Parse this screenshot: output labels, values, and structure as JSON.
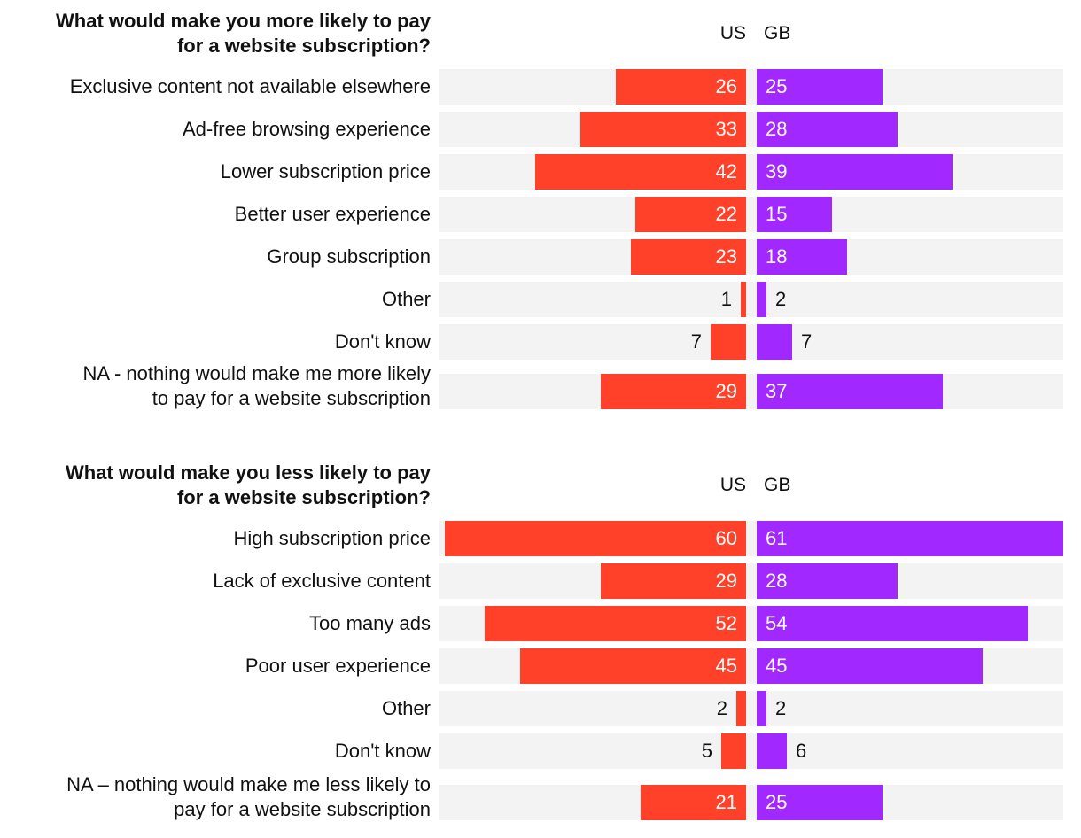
{
  "chart_data": [
    {
      "type": "bar",
      "orientation": "horizontal-diverging",
      "title": "What would make you more likely to pay for a website subscription?",
      "title_lines": [
        "What would make you more likely to pay",
        "for a website subscription?"
      ],
      "series_labels": [
        "US",
        "GB"
      ],
      "colors": {
        "US": "#ff4129",
        "GB": "#a128ff",
        "track": "#f3f3f3"
      },
      "xlim": [
        0,
        61
      ],
      "rows": [
        {
          "label_lines": [
            "Exclusive content not available elsewhere"
          ],
          "US": 26,
          "GB": 25
        },
        {
          "label_lines": [
            "Ad-free browsing experience"
          ],
          "US": 33,
          "GB": 28
        },
        {
          "label_lines": [
            "Lower subscription price"
          ],
          "US": 42,
          "GB": 39
        },
        {
          "label_lines": [
            "Better user experience"
          ],
          "US": 22,
          "GB": 15
        },
        {
          "label_lines": [
            "Group subscription"
          ],
          "US": 23,
          "GB": 18
        },
        {
          "label_lines": [
            "Other"
          ],
          "US": 1,
          "GB": 2
        },
        {
          "label_lines": [
            "Don't know"
          ],
          "US": 7,
          "GB": 7
        },
        {
          "label_lines": [
            "NA - nothing would make me more likely",
            "to pay for a website subscription"
          ],
          "US": 29,
          "GB": 37
        }
      ]
    },
    {
      "type": "bar",
      "orientation": "horizontal-diverging",
      "title": "What would make you less likely to pay for a website subscription?",
      "title_lines": [
        "What would make you less likely to pay",
        "for a website subscription?"
      ],
      "series_labels": [
        "US",
        "GB"
      ],
      "colors": {
        "US": "#ff4129",
        "GB": "#a128ff",
        "track": "#f3f3f3"
      },
      "xlim": [
        0,
        61
      ],
      "rows": [
        {
          "label_lines": [
            "High subscription price"
          ],
          "US": 60,
          "GB": 61
        },
        {
          "label_lines": [
            "Lack of exclusive content"
          ],
          "US": 29,
          "GB": 28
        },
        {
          "label_lines": [
            "Too many ads"
          ],
          "US": 52,
          "GB": 54
        },
        {
          "label_lines": [
            "Poor user experience"
          ],
          "US": 45,
          "GB": 45
        },
        {
          "label_lines": [
            "Other"
          ],
          "US": 2,
          "GB": 2
        },
        {
          "label_lines": [
            "Don't know"
          ],
          "US": 5,
          "GB": 6
        },
        {
          "label_lines": [
            "NA – nothing would make me less likely to",
            "pay for a website subscription"
          ],
          "US": 21,
          "GB": 25
        }
      ]
    }
  ]
}
